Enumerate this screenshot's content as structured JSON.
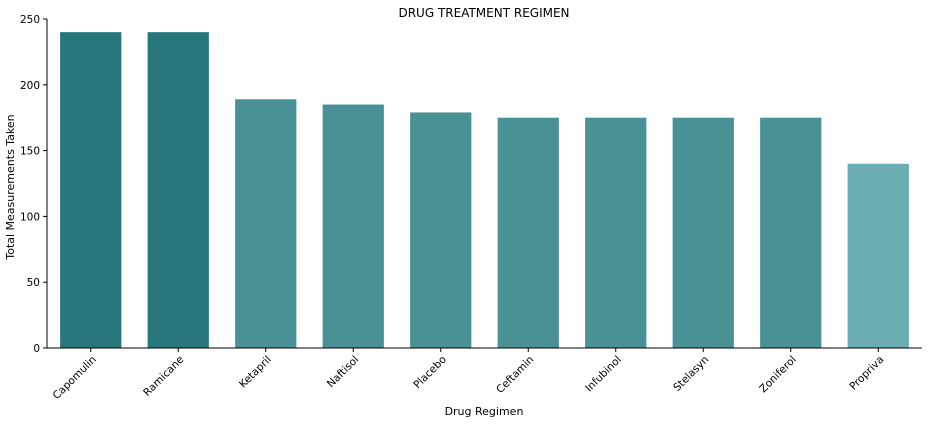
{
  "chart_data": {
    "type": "bar",
    "title": "DRUG TREATMENT REGIMEN",
    "xlabel": "Drug Regimen",
    "ylabel": "Total Measurements Taken",
    "categories": [
      "Capomulin",
      "Ramicane",
      "Ketapril",
      "Naftisol",
      "Placebo",
      "Ceftamin",
      "Infubinol",
      "Stelasyn",
      "Zoniferol",
      "Propriva"
    ],
    "values": [
      240,
      240,
      189,
      185,
      179,
      175,
      175,
      175,
      175,
      140
    ],
    "bar_colors": [
      "#27777b",
      "#27777b",
      "#4a9196",
      "#4a9196",
      "#4a9196",
      "#4a9196",
      "#4a9196",
      "#4a9196",
      "#4a9196",
      "#6aaeb3"
    ],
    "ylim": [
      0,
      250
    ],
    "yticks": [
      0,
      50,
      100,
      150,
      200,
      250
    ],
    "grid": false,
    "legend": "none"
  }
}
